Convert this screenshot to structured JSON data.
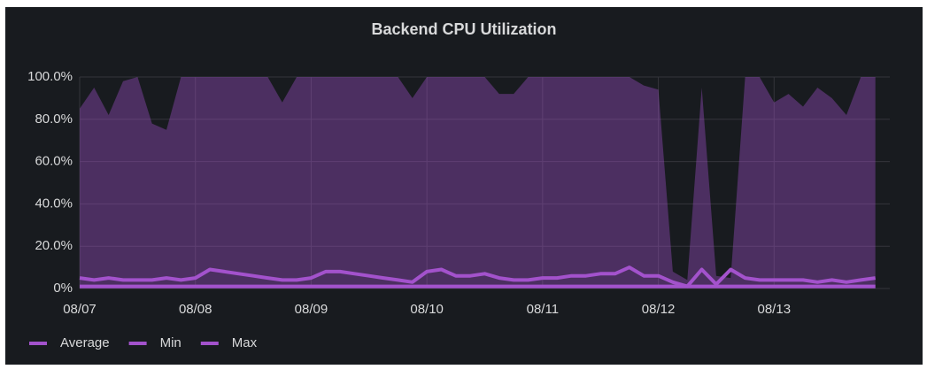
{
  "chart_data": {
    "type": "area",
    "title": "Backend CPU Utilization",
    "x": [
      0,
      0.125,
      0.25,
      0.375,
      0.5,
      0.625,
      0.75,
      0.875,
      1,
      1.125,
      1.25,
      1.375,
      1.5,
      1.625,
      1.75,
      1.875,
      2,
      2.125,
      2.25,
      2.375,
      2.5,
      2.625,
      2.75,
      2.875,
      3,
      3.125,
      3.25,
      3.375,
      3.5,
      3.625,
      3.75,
      3.875,
      4,
      4.125,
      4.25,
      4.375,
      4.5,
      4.625,
      4.75,
      4.875,
      5,
      5.125,
      5.25,
      5.375,
      5.5,
      5.625,
      5.75,
      5.875,
      6,
      6.125,
      6.25,
      6.375,
      6.5,
      6.625,
      6.75,
      6.875
    ],
    "xlim": [
      0,
      7
    ],
    "xticks": [
      {
        "value": 0,
        "label": "08/07"
      },
      {
        "value": 1,
        "label": "08/08"
      },
      {
        "value": 2,
        "label": "08/09"
      },
      {
        "value": 3,
        "label": "08/10"
      },
      {
        "value": 4,
        "label": "08/11"
      },
      {
        "value": 5,
        "label": "08/12"
      },
      {
        "value": 6,
        "label": "08/13"
      }
    ],
    "ylim": [
      0,
      100
    ],
    "yticks": [
      {
        "value": 0,
        "label": "0%"
      },
      {
        "value": 20,
        "label": "20.0%"
      },
      {
        "value": 40,
        "label": "40.0%"
      },
      {
        "value": 60,
        "label": "60.0%"
      },
      {
        "value": 80,
        "label": "80.0%"
      },
      {
        "value": 100,
        "label": "100.0%"
      }
    ],
    "grid": true,
    "series": [
      {
        "name": "Average",
        "color": "#a352cc",
        "values": [
          5,
          4,
          5,
          4,
          4,
          4,
          5,
          4,
          5,
          9,
          8,
          7,
          6,
          5,
          4,
          4,
          5,
          8,
          8,
          7,
          6,
          5,
          4,
          3,
          8,
          9,
          6,
          6,
          7,
          5,
          4,
          4,
          5,
          5,
          6,
          6,
          7,
          7,
          10,
          6,
          6,
          3,
          1,
          9,
          2,
          9,
          5,
          4,
          4,
          4,
          4,
          3,
          4,
          3,
          4,
          5
        ]
      },
      {
        "name": "Min",
        "color": "#a352cc",
        "values": [
          1,
          1,
          1,
          1,
          1,
          1,
          1,
          1,
          1,
          1,
          1,
          1,
          1,
          1,
          1,
          1,
          1,
          1,
          1,
          1,
          1,
          1,
          1,
          1,
          1,
          1,
          1,
          1,
          1,
          1,
          1,
          1,
          1,
          1,
          1,
          1,
          1,
          1,
          1,
          1,
          1,
          1,
          1,
          1,
          1,
          1,
          1,
          1,
          1,
          1,
          1,
          1,
          1,
          1,
          1,
          1
        ]
      },
      {
        "name": "Max",
        "color": "#a352cc",
        "values": [
          85,
          95,
          82,
          98,
          100,
          78,
          75,
          100,
          100,
          100,
          100,
          100,
          100,
          100,
          88,
          100,
          100,
          100,
          100,
          100,
          100,
          100,
          100,
          90,
          100,
          100,
          100,
          100,
          100,
          92,
          92,
          100,
          100,
          100,
          100,
          100,
          100,
          100,
          100,
          96,
          94,
          8,
          4,
          95,
          6,
          5,
          100,
          100,
          88,
          92,
          86,
          95,
          90,
          82,
          100,
          100
        ]
      }
    ]
  }
}
